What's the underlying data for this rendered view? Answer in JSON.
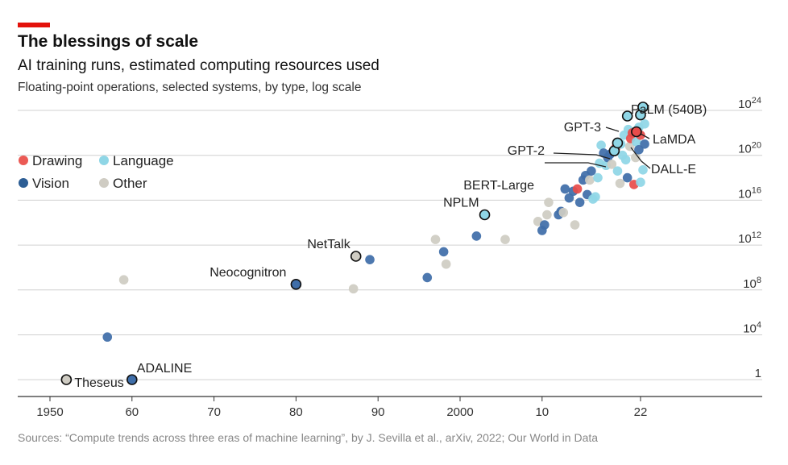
{
  "title": "The blessings of scale",
  "subtitle": "AI training runs, estimated computing resources used",
  "description": "Floating-point operations, selected systems, by type, log scale",
  "source": "Sources: “Compute trends across three eras of machine learning”, by J. Sevilla et al., arXiv, 2022; Our World in Data",
  "accent_color": "#e3120b",
  "chart_data": {
    "type": "scatter",
    "y_scale": "log10",
    "xlim": [
      1945,
      2035
    ],
    "ylim_log10": [
      -1.5,
      25.5
    ],
    "x_ticks": [
      {
        "value": 1950,
        "label": "1950"
      },
      {
        "value": 1960,
        "label": "60"
      },
      {
        "value": 1970,
        "label": "70"
      },
      {
        "value": 1980,
        "label": "80"
      },
      {
        "value": 1990,
        "label": "90"
      },
      {
        "value": 2000,
        "label": "2000"
      },
      {
        "value": 2010,
        "label": "10"
      },
      {
        "value": 2022,
        "label": "22"
      }
    ],
    "y_ticks": [
      {
        "log10": 0,
        "base": "1",
        "exp": ""
      },
      {
        "log10": 4,
        "base": "10",
        "exp": "4"
      },
      {
        "log10": 8,
        "base": "10",
        "exp": "8"
      },
      {
        "log10": 12,
        "base": "10",
        "exp": "12"
      },
      {
        "log10": 16,
        "base": "10",
        "exp": "16"
      },
      {
        "log10": 20,
        "base": "10",
        "exp": "20"
      },
      {
        "log10": 24,
        "base": "10",
        "exp": "24"
      }
    ],
    "legend": [
      {
        "name": "Drawing",
        "color": "#eb5a55"
      },
      {
        "name": "Language",
        "color": "#8fd6e6"
      },
      {
        "name": "Vision",
        "color": "#2d5e95"
      },
      {
        "name": "Other",
        "color": "#cfccc3"
      }
    ],
    "colors": {
      "Drawing": "#e84c4a",
      "Language": "#8fd6e6",
      "Vision": "#3f6ea9",
      "Other": "#cfccc3"
    },
    "points": [
      {
        "x": 1957,
        "log10_y": 3.8,
        "type": "Vision"
      },
      {
        "x": 1959,
        "log10_y": 8.9,
        "type": "Other"
      },
      {
        "x": 1987,
        "log10_y": 8.1,
        "type": "Other"
      },
      {
        "x": 1989,
        "log10_y": 10.7,
        "type": "Vision"
      },
      {
        "x": 1996,
        "log10_y": 9.1,
        "type": "Vision"
      },
      {
        "x": 1997,
        "log10_y": 12.5,
        "type": "Other"
      },
      {
        "x": 1998,
        "log10_y": 11.4,
        "type": "Vision"
      },
      {
        "x": 1998.3,
        "log10_y": 10.3,
        "type": "Other"
      },
      {
        "x": 2002,
        "log10_y": 12.8,
        "type": "Vision"
      },
      {
        "x": 2005.5,
        "log10_y": 12.5,
        "type": "Other"
      },
      {
        "x": 2009.5,
        "log10_y": 14.1,
        "type": "Other"
      },
      {
        "x": 2010,
        "log10_y": 13.3,
        "type": "Vision"
      },
      {
        "x": 2010.3,
        "log10_y": 13.8,
        "type": "Vision"
      },
      {
        "x": 2010.6,
        "log10_y": 14.7,
        "type": "Other"
      },
      {
        "x": 2010.8,
        "log10_y": 15.8,
        "type": "Other"
      },
      {
        "x": 2012,
        "log10_y": 14.7,
        "type": "Vision"
      },
      {
        "x": 2012.3,
        "log10_y": 15.0,
        "type": "Vision"
      },
      {
        "x": 2012.6,
        "log10_y": 14.9,
        "type": "Other"
      },
      {
        "x": 2012.8,
        "log10_y": 17.0,
        "type": "Vision"
      },
      {
        "x": 2013.3,
        "log10_y": 16.2,
        "type": "Vision"
      },
      {
        "x": 2013.8,
        "log10_y": 16.8,
        "type": "Vision"
      },
      {
        "x": 2014,
        "log10_y": 13.8,
        "type": "Other"
      },
      {
        "x": 2014.3,
        "log10_y": 17.0,
        "type": "Drawing"
      },
      {
        "x": 2014.6,
        "log10_y": 15.8,
        "type": "Vision"
      },
      {
        "x": 2015,
        "log10_y": 17.8,
        "type": "Vision"
      },
      {
        "x": 2015.3,
        "log10_y": 18.2,
        "type": "Vision"
      },
      {
        "x": 2015.5,
        "log10_y": 16.5,
        "type": "Vision"
      },
      {
        "x": 2015.8,
        "log10_y": 17.8,
        "type": "Other"
      },
      {
        "x": 2016,
        "log10_y": 18.6,
        "type": "Vision"
      },
      {
        "x": 2016.2,
        "log10_y": 16.1,
        "type": "Language"
      },
      {
        "x": 2016.5,
        "log10_y": 16.3,
        "type": "Language"
      },
      {
        "x": 2016.8,
        "log10_y": 18.0,
        "type": "Language"
      },
      {
        "x": 2017,
        "log10_y": 19.3,
        "type": "Language"
      },
      {
        "x": 2017.2,
        "log10_y": 20.9,
        "type": "Language"
      },
      {
        "x": 2017.5,
        "log10_y": 20.2,
        "type": "Vision"
      },
      {
        "x": 2017.8,
        "log10_y": 19.1,
        "type": "Language"
      },
      {
        "x": 2018,
        "log10_y": 19.8,
        "type": "Vision"
      },
      {
        "x": 2018.3,
        "log10_y": 20.1,
        "type": "Vision"
      },
      {
        "x": 2018.5,
        "log10_y": 19.2,
        "type": "Other"
      },
      {
        "x": 2018.8,
        "log10_y": 20.5,
        "type": "Language"
      },
      {
        "x": 2019,
        "log10_y": 20.7,
        "type": "Drawing"
      },
      {
        "x": 2019.2,
        "log10_y": 18.6,
        "type": "Language"
      },
      {
        "x": 2019.5,
        "log10_y": 17.5,
        "type": "Other"
      },
      {
        "x": 2019.6,
        "log10_y": 21.0,
        "type": "Language"
      },
      {
        "x": 2019.8,
        "log10_y": 20.0,
        "type": "Language"
      },
      {
        "x": 2020,
        "log10_y": 21.8,
        "type": "Language"
      },
      {
        "x": 2020.2,
        "log10_y": 19.6,
        "type": "Language"
      },
      {
        "x": 2020.4,
        "log10_y": 18.0,
        "type": "Vision"
      },
      {
        "x": 2020.5,
        "log10_y": 22.3,
        "type": "Language"
      },
      {
        "x": 2020.7,
        "log10_y": 20.8,
        "type": "Other"
      },
      {
        "x": 2020.8,
        "log10_y": 21.5,
        "type": "Drawing"
      },
      {
        "x": 2021,
        "log10_y": 22.0,
        "type": "Drawing"
      },
      {
        "x": 2021.2,
        "log10_y": 17.4,
        "type": "Drawing"
      },
      {
        "x": 2021.4,
        "log10_y": 19.8,
        "type": "Other"
      },
      {
        "x": 2021.5,
        "log10_y": 21.2,
        "type": "Language"
      },
      {
        "x": 2021.8,
        "log10_y": 22.5,
        "type": "Language"
      },
      {
        "x": 2021.8,
        "log10_y": 20.5,
        "type": "Vision"
      },
      {
        "x": 2022,
        "log10_y": 21.8,
        "type": "Drawing"
      },
      {
        "x": 2022,
        "log10_y": 17.6,
        "type": "Language"
      },
      {
        "x": 2022.3,
        "log10_y": 18.7,
        "type": "Language"
      },
      {
        "x": 2022.5,
        "log10_y": 22.8,
        "type": "Language"
      },
      {
        "x": 2022.5,
        "log10_y": 21.0,
        "type": "Vision"
      }
    ],
    "labeled_points": [
      {
        "name": "Theseus",
        "x": 1952,
        "log10_y": 0.0,
        "type": "Other"
      },
      {
        "name": "ADALINE",
        "x": 1960,
        "log10_y": 0.0,
        "log10_y_actual": 4.0,
        "type": "Vision"
      },
      {
        "name": "Neocognitron",
        "x": 1980,
        "log10_y": 8.5,
        "type": "Vision"
      },
      {
        "name": "NetTalk",
        "x": 1987.3,
        "log10_y": 11.0,
        "type": "Other"
      },
      {
        "name": "NPLM",
        "x": 2003,
        "log10_y": 14.7,
        "type": "Language"
      },
      {
        "name": "BERT-Large",
        "x": 2018.8,
        "log10_y": 20.4,
        "type": "Language"
      },
      {
        "name": "GPT-2",
        "x": 2019.2,
        "log10_y": 21.1,
        "type": "Language"
      },
      {
        "name": "GPT-3",
        "x": 2020.4,
        "log10_y": 23.5,
        "type": "Language"
      },
      {
        "name": "DALL-E",
        "x": 2021.5,
        "log10_y": 22.1,
        "type": "Drawing"
      },
      {
        "name": "LaMDA",
        "x": 2022,
        "log10_y": 23.6,
        "type": "Language"
      },
      {
        "name": "PaLM (540B)",
        "x": 2022.3,
        "log10_y": 24.3,
        "type": "Language"
      }
    ]
  }
}
